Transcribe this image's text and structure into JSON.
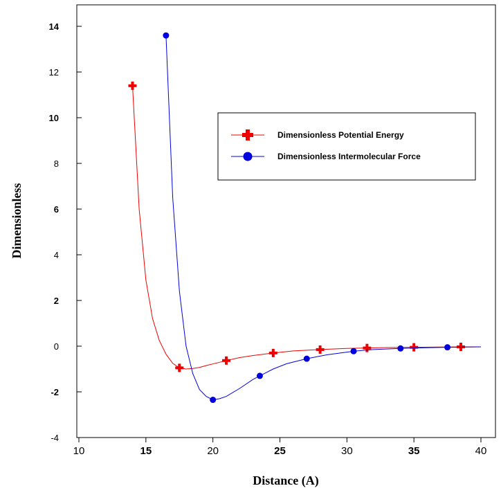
{
  "chart_data": {
    "type": "line",
    "title": "",
    "xlabel": "Distance (A)",
    "ylabel": "Dimensionless",
    "xlim": [
      10,
      40
    ],
    "ylim": [
      -4,
      15
    ],
    "xticks": [
      {
        "label": "10",
        "value": 10,
        "bold": false
      },
      {
        "label": "15",
        "value": 15,
        "bold": true
      },
      {
        "label": "20",
        "value": 20,
        "bold": false
      },
      {
        "label": "25",
        "value": 25,
        "bold": true
      },
      {
        "label": "30",
        "value": 30,
        "bold": false
      },
      {
        "label": "35",
        "value": 35,
        "bold": true
      },
      {
        "label": "40",
        "value": 40,
        "bold": false
      }
    ],
    "yticks": [
      {
        "label": "-4",
        "value": -4,
        "bold": false
      },
      {
        "label": "-2",
        "value": -2,
        "bold": true
      },
      {
        "label": "0",
        "value": 0,
        "bold": false
      },
      {
        "label": "2",
        "value": 2,
        "bold": true
      },
      {
        "label": "4",
        "value": 4,
        "bold": false
      },
      {
        "label": "6",
        "value": 6,
        "bold": true
      },
      {
        "label": "8",
        "value": 8,
        "bold": false
      },
      {
        "label": "10",
        "value": 10,
        "bold": true
      },
      {
        "label": "12",
        "value": 12,
        "bold": false
      },
      {
        "label": "14",
        "value": 14,
        "bold": true
      }
    ],
    "grid": false,
    "legend_position": "upper-right",
    "series": [
      {
        "name": "Dimensionless Potential Energy",
        "color": "#ee0000",
        "marker": "plus",
        "points": [
          [
            14,
            11.4
          ],
          [
            17.5,
            -0.95
          ],
          [
            21,
            -0.63
          ],
          [
            24.5,
            -0.3
          ],
          [
            28,
            -0.15
          ],
          [
            31.5,
            -0.08
          ],
          [
            35,
            -0.05
          ],
          [
            38.5,
            -0.03
          ]
        ],
        "curve": [
          [
            14,
            11.4
          ],
          [
            14.5,
            6.0
          ],
          [
            15,
            2.9
          ],
          [
            15.5,
            1.2
          ],
          [
            16,
            0.25
          ],
          [
            16.5,
            -0.35
          ],
          [
            17,
            -0.75
          ],
          [
            17.5,
            -0.95
          ],
          [
            18,
            -1.0
          ],
          [
            18.5,
            -0.98
          ],
          [
            19,
            -0.93
          ],
          [
            19.5,
            -0.85
          ],
          [
            20,
            -0.78
          ],
          [
            21,
            -0.63
          ],
          [
            22,
            -0.5
          ],
          [
            23,
            -0.41
          ],
          [
            24.5,
            -0.3
          ],
          [
            26,
            -0.21
          ],
          [
            28,
            -0.15
          ],
          [
            30,
            -0.1
          ],
          [
            31.5,
            -0.08
          ],
          [
            33,
            -0.06
          ],
          [
            35,
            -0.05
          ],
          [
            37,
            -0.04
          ],
          [
            40,
            -0.03
          ]
        ]
      },
      {
        "name": "Dimensionless Intermolecular Force",
        "color": "#0000dd",
        "marker": "circle",
        "points": [
          [
            16.5,
            13.6
          ],
          [
            20,
            -2.35
          ],
          [
            23.5,
            -1.3
          ],
          [
            27,
            -0.55
          ],
          [
            30.5,
            -0.22
          ],
          [
            34,
            -0.1
          ],
          [
            37.5,
            -0.05
          ]
        ],
        "curve": [
          [
            16.5,
            13.6
          ],
          [
            17,
            6.5
          ],
          [
            17.5,
            2.4
          ],
          [
            18,
            0.0
          ],
          [
            18.5,
            -1.2
          ],
          [
            19,
            -1.9
          ],
          [
            19.5,
            -2.2
          ],
          [
            20,
            -2.35
          ],
          [
            20.5,
            -2.3
          ],
          [
            21,
            -2.2
          ],
          [
            22,
            -1.85
          ],
          [
            23,
            -1.45
          ],
          [
            23.5,
            -1.3
          ],
          [
            24.5,
            -1.0
          ],
          [
            25.5,
            -0.77
          ],
          [
            27,
            -0.55
          ],
          [
            28.5,
            -0.38
          ],
          [
            30.5,
            -0.22
          ],
          [
            32,
            -0.15
          ],
          [
            34,
            -0.1
          ],
          [
            36,
            -0.07
          ],
          [
            37.5,
            -0.05
          ],
          [
            40,
            -0.03
          ]
        ]
      }
    ]
  }
}
